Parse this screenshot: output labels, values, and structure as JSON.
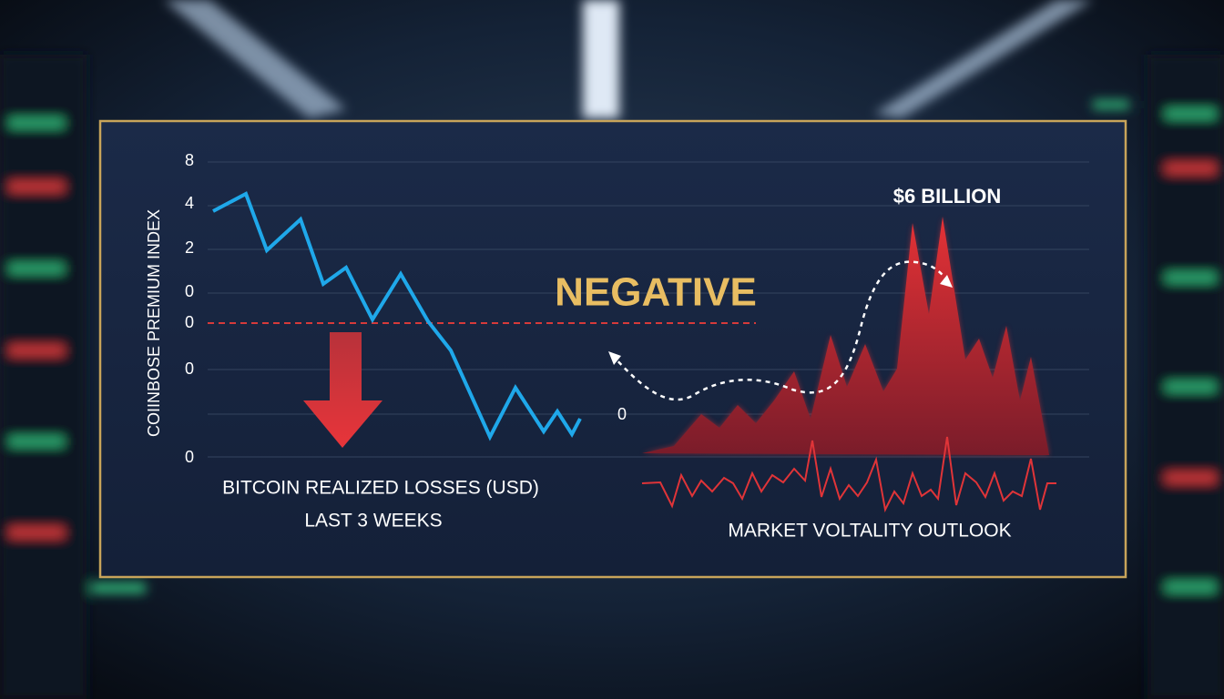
{
  "y_axis": {
    "title": "COIINBOSE PREMIUM INDEX",
    "tick_labels": [
      "8",
      "4",
      "2",
      "0",
      "0",
      "0",
      "0"
    ]
  },
  "left_chart": {
    "caption": "BITCOIN REALIZED LOSSES (USD)",
    "subcaption": "LAST 3 WEEKS"
  },
  "center": {
    "label": "NEGATIVE"
  },
  "right_chart": {
    "peak_label": "$6 BILLION",
    "axis_label": "0",
    "caption": "MARKET VOLTALITY OUTLOOK"
  }
}
